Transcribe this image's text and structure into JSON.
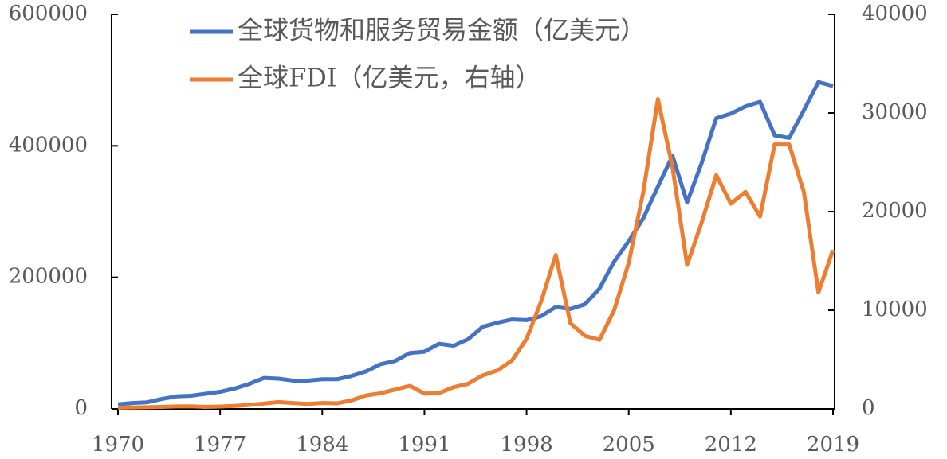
{
  "chart_data": {
    "type": "line",
    "x": [
      1970,
      1971,
      1972,
      1973,
      1974,
      1975,
      1976,
      1977,
      1978,
      1979,
      1980,
      1981,
      1982,
      1983,
      1984,
      1985,
      1986,
      1987,
      1988,
      1989,
      1990,
      1991,
      1992,
      1993,
      1994,
      1995,
      1996,
      1997,
      1998,
      1999,
      2000,
      2001,
      2002,
      2003,
      2004,
      2005,
      2006,
      2007,
      2008,
      2009,
      2010,
      2011,
      2012,
      2013,
      2014,
      2015,
      2016,
      2017,
      2018,
      2019
    ],
    "series": [
      {
        "name": "全球货物和服务贸易金额（亿美元）",
        "color": "#4472c4",
        "axis": "y",
        "values": [
          7000,
          9000,
          10000,
          15000,
          19000,
          20000,
          23000,
          26000,
          31000,
          38000,
          47000,
          46000,
          43000,
          43000,
          45000,
          45000,
          50000,
          57000,
          68000,
          73000,
          85000,
          87000,
          99000,
          96000,
          106000,
          125000,
          131000,
          136000,
          135000,
          141000,
          155000,
          152000,
          159000,
          183000,
          224000,
          255000,
          290000,
          338000,
          385000,
          314000,
          374000,
          442000,
          449000,
          460000,
          467000,
          416000,
          412000,
          454000,
          497000,
          491000
        ]
      },
      {
        "name": "全球FDI（亿美元，右轴）",
        "color": "#ed7d31",
        "axis": "y2",
        "values": [
          130,
          150,
          170,
          200,
          250,
          260,
          200,
          240,
          300,
          400,
          540,
          700,
          590,
          500,
          600,
          560,
          860,
          1360,
          1590,
          1960,
          2340,
          1550,
          1600,
          2200,
          2550,
          3400,
          3900,
          4900,
          7100,
          10900,
          15600,
          8700,
          7400,
          7000,
          10000,
          14800,
          22000,
          31400,
          24500,
          14600,
          18900,
          23700,
          20800,
          22000,
          19500,
          26800,
          26800,
          22000,
          11800,
          16100
        ]
      }
    ],
    "xlim": [
      1970,
      2019
    ],
    "xticks": [
      1970,
      1977,
      1984,
      1991,
      1998,
      2005,
      2012,
      2019
    ],
    "ylim": [
      0,
      600000
    ],
    "yticks": [
      0,
      200000,
      400000,
      600000
    ],
    "y2lim": [
      0,
      40000
    ],
    "y2ticks": [
      0,
      10000,
      20000,
      30000,
      40000
    ],
    "legend": "top-left"
  }
}
